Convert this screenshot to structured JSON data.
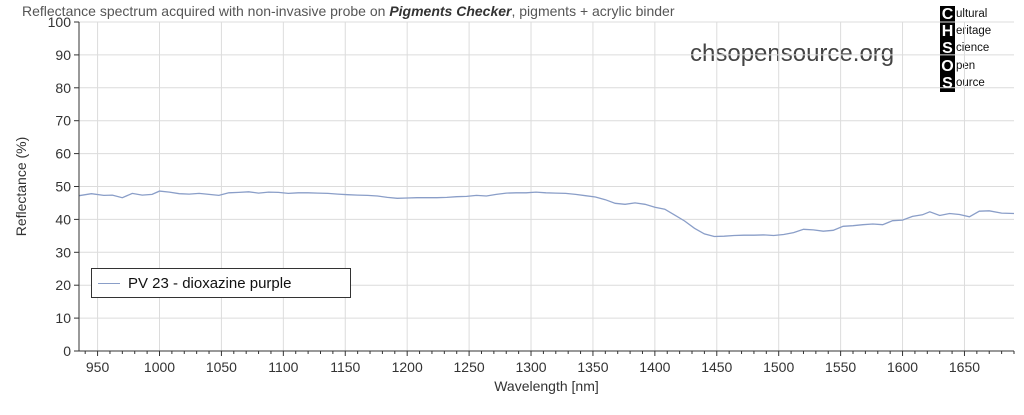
{
  "header": {
    "title_prefix": "Reflectance spectrum acquired with non-invasive probe on ",
    "title_emphasis": "Pigments Checker",
    "title_suffix": ", pigments + acrylic binder",
    "watermark": "chsopensource.org"
  },
  "logo": {
    "rows": [
      {
        "letter": "C",
        "rest": "ultural"
      },
      {
        "letter": "H",
        "rest": "eritage"
      },
      {
        "letter": "S",
        "rest": "cience"
      },
      {
        "letter": "O",
        "rest": "pen"
      },
      {
        "letter": "S",
        "rest": "ource"
      }
    ]
  },
  "chart_data": {
    "type": "line",
    "xlabel": "Wavelength [nm]",
    "ylabel": "Reflectance (%)",
    "xlim": [
      935,
      1690
    ],
    "ylim": [
      0,
      100
    ],
    "xticks": [
      950,
      1000,
      1050,
      1100,
      1150,
      1200,
      1250,
      1300,
      1350,
      1400,
      1450,
      1500,
      1550,
      1600,
      1650
    ],
    "yticks": [
      0,
      10,
      20,
      30,
      40,
      50,
      60,
      70,
      80,
      90,
      100
    ],
    "grid": true,
    "legend_position": "bottom-left",
    "series": [
      {
        "name": "PV 23 - dioxazine purple",
        "color": "#8a9ec8",
        "x": [
          935,
          945,
          955,
          962,
          970,
          978,
          986,
          994,
          1000,
          1008,
          1016,
          1024,
          1032,
          1040,
          1048,
          1056,
          1064,
          1072,
          1080,
          1088,
          1096,
          1104,
          1112,
          1120,
          1128,
          1136,
          1144,
          1152,
          1160,
          1168,
          1176,
          1184,
          1192,
          1200,
          1208,
          1216,
          1224,
          1232,
          1240,
          1248,
          1256,
          1264,
          1272,
          1280,
          1288,
          1296,
          1304,
          1312,
          1320,
          1328,
          1336,
          1344,
          1352,
          1360,
          1368,
          1376,
          1384,
          1392,
          1400,
          1408,
          1416,
          1424,
          1432,
          1440,
          1448,
          1456,
          1464,
          1472,
          1480,
          1488,
          1496,
          1504,
          1512,
          1520,
          1528,
          1536,
          1544,
          1552,
          1560,
          1568,
          1576,
          1584,
          1592,
          1600,
          1608,
          1616,
          1622,
          1630,
          1638,
          1646,
          1654,
          1662,
          1670,
          1680,
          1690
        ],
        "y": [
          47.2,
          47.8,
          47.3,
          47.4,
          46.6,
          47.9,
          47.4,
          47.6,
          48.6,
          48.3,
          47.8,
          47.7,
          47.9,
          47.6,
          47.3,
          48.1,
          48.2,
          48.4,
          48.0,
          48.3,
          48.2,
          47.9,
          48.1,
          48.1,
          48.0,
          47.9,
          47.7,
          47.5,
          47.4,
          47.3,
          47.1,
          46.7,
          46.4,
          46.5,
          46.6,
          46.6,
          46.6,
          46.7,
          46.9,
          47.0,
          47.3,
          47.1,
          47.6,
          48.0,
          48.1,
          48.1,
          48.3,
          48.1,
          48.0,
          47.9,
          47.6,
          47.2,
          46.8,
          46.0,
          44.9,
          44.6,
          45.0,
          44.6,
          43.7,
          43.1,
          41.3,
          39.5,
          37.3,
          35.6,
          34.8,
          34.9,
          35.1,
          35.2,
          35.2,
          35.3,
          35.1,
          35.4,
          36.0,
          37.0,
          36.8,
          36.4,
          36.7,
          37.9,
          38.1,
          38.4,
          38.6,
          38.4,
          39.6,
          39.8,
          40.9,
          41.4,
          42.3,
          41.2,
          41.8,
          41.5,
          40.8,
          42.5,
          42.6,
          41.9,
          41.8
        ]
      }
    ]
  }
}
